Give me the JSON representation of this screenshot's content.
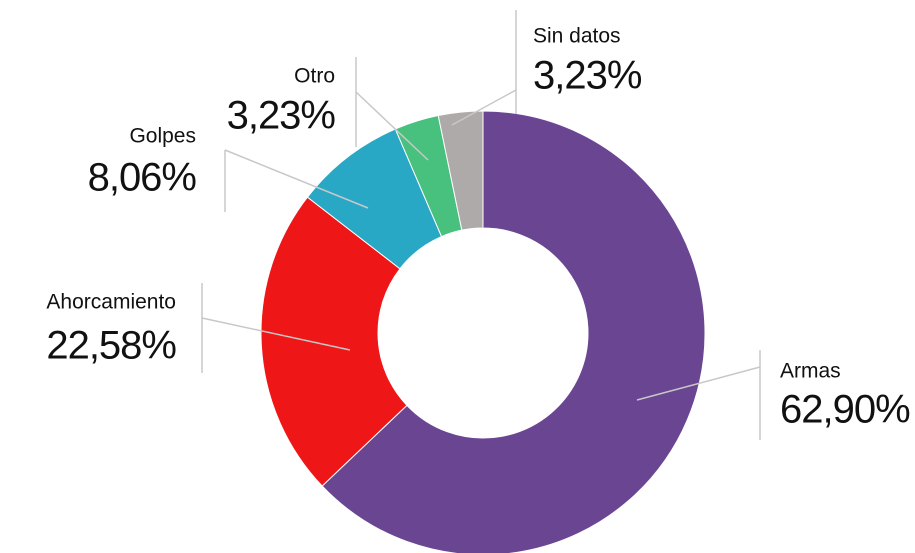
{
  "chart_data": {
    "type": "donut",
    "categories": [
      "Armas",
      "Ahorcamiento",
      "Golpes",
      "Otro",
      "Sin datos"
    ],
    "values": [
      62.9,
      22.58,
      8.06,
      3.23,
      3.23
    ],
    "value_labels": [
      "62,90%",
      "22,58%",
      "8,06%",
      "3,23%",
      "3,23%"
    ],
    "colors": [
      "#6a4592",
      "#ee1616",
      "#29a8c6",
      "#48c07e",
      "#aeaaa9"
    ]
  }
}
